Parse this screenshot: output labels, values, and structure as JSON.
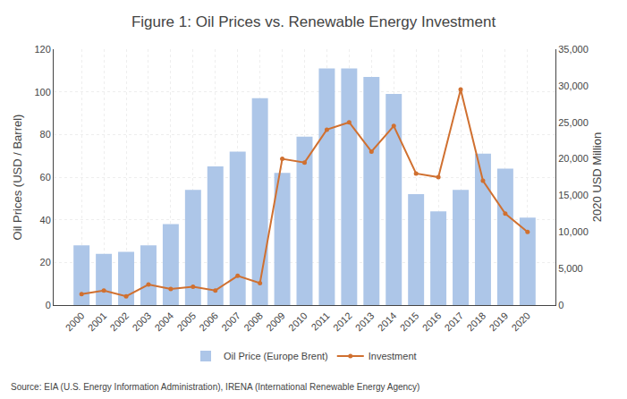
{
  "chart_data": {
    "type": "bar",
    "title": "Figure 1: Oil Prices vs. Renewable Energy Investment",
    "categories": [
      "2000",
      "2001",
      "2002",
      "2003",
      "2004",
      "2005",
      "2006",
      "2007",
      "2008",
      "2009",
      "2010",
      "2011",
      "2012",
      "2013",
      "2014",
      "2015",
      "2016",
      "2017",
      "2018",
      "2019",
      "2020"
    ],
    "series": [
      {
        "name": "Oil Price (Europe Brent)",
        "type": "bar",
        "color": "#adc6e8",
        "values": [
          28,
          24,
          25,
          28,
          38,
          54,
          65,
          72,
          97,
          62,
          79,
          111,
          111,
          107,
          99,
          52,
          44,
          54,
          71,
          64,
          41
        ]
      },
      {
        "name": "Investment",
        "type": "line",
        "axis": "y2",
        "color": "#d07030",
        "marker": "circle",
        "line_style": "solid",
        "values": [
          1500,
          2000,
          1200,
          2800,
          2200,
          2500,
          2000,
          4000,
          3000,
          20000,
          19500,
          24000,
          25000,
          21000,
          24500,
          18000,
          17500,
          29500,
          17000,
          12500,
          10000
        ]
      }
    ],
    "ylabel": "Oil Prices (USD / Barrel)",
    "y2label": "2020 USD Million",
    "ylim": [
      0,
      120
    ],
    "yticks": [
      0,
      20,
      40,
      60,
      80,
      100,
      120
    ],
    "y2lim": [
      0,
      35000
    ],
    "y2ticks": [
      0,
      {
        "value": 5000,
        "label": "5,000"
      },
      {
        "value": 10000,
        "label": "10,000"
      },
      {
        "value": 15000,
        "label": "15,000"
      },
      {
        "value": 20000,
        "label": "20,000"
      },
      {
        "value": 25000,
        "label": "25,000"
      },
      {
        "value": 30000,
        "label": "30,000"
      },
      {
        "value": 35000,
        "label": "35,000"
      }
    ],
    "annotations": [
      "Source: EIA (U.S. Energy Information Administration), IRENA (International Renewable Energy Agency)"
    ],
    "grid": true,
    "legend": "bottom"
  }
}
